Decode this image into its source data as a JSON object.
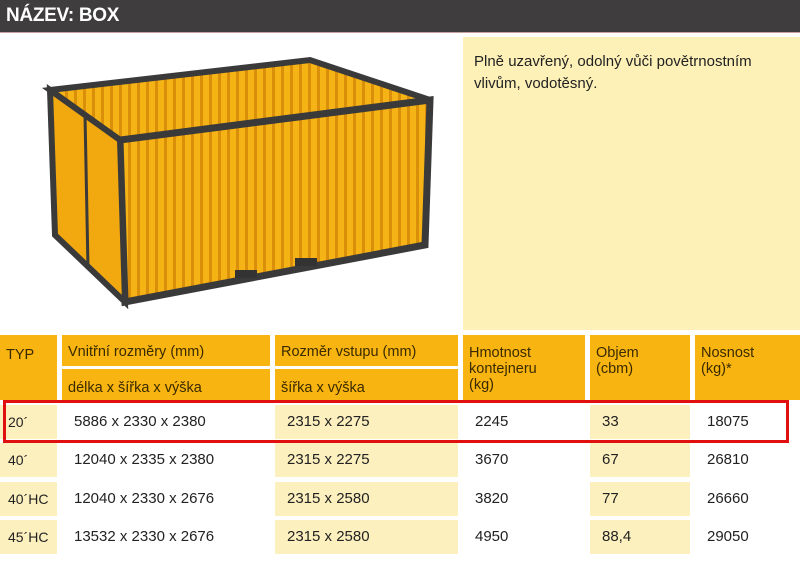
{
  "header": {
    "title": "NÁZEV: BOX"
  },
  "description": "Plně uzavřený, odolný vůči povětrnostním vlivům, vodotěsný.",
  "colors": {
    "header_bg": "#3f3d3d",
    "table_header": "#f8b410",
    "band": "#fdf0bf",
    "highlight": "#e01010",
    "container": "#f6b316"
  },
  "table": {
    "headers": {
      "typ": "TYP",
      "inner": "Vnitřní rozměry (mm)",
      "inner_sub": "délka x šířka x výška",
      "entry": "Rozměr vstupu (mm)",
      "entry_sub": "šířka x výška",
      "weight": "Hmotnost kontejneru (kg)",
      "volume": "Objem (cbm)",
      "payload": "Nosnost (kg)*"
    },
    "rows": [
      {
        "typ": "20´",
        "inner": "5886 x 2330 x 2380",
        "entry": "2315 x 2275",
        "weight": "2245",
        "volume": "33",
        "payload": "18075",
        "highlighted": true
      },
      {
        "typ": "40´",
        "inner": "12040 x 2335 x 2380",
        "entry": "2315 x 2275",
        "weight": "3670",
        "volume": "67",
        "payload": "26810"
      },
      {
        "typ": "40´HC",
        "inner": "12040 x 2330 x 2676",
        "entry": "2315 x 2580",
        "weight": "3820",
        "volume": "77",
        "payload": "26660"
      },
      {
        "typ": "45´HC",
        "inner": "13532 x 2330 x 2676",
        "entry": "2315 x 2580",
        "weight": "4950",
        "volume": "88,4",
        "payload": "29050"
      }
    ]
  }
}
